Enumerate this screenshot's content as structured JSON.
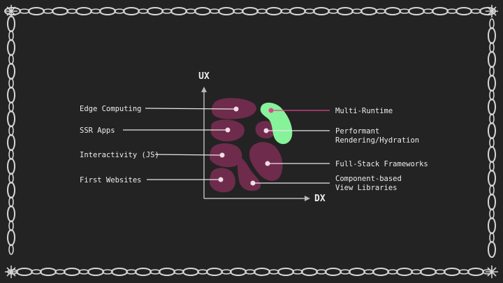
{
  "axes": {
    "y_label": "UX",
    "x_label": "DX"
  },
  "colors": {
    "background": "#232323",
    "blob": "#6e2b4c",
    "highlight_blob": "#86f29a",
    "leader": "#e6e6e6",
    "highlight_leader": "#e0468a",
    "chain": "#d6d6d6"
  },
  "labels_left": [
    {
      "text": "Edge Computing"
    },
    {
      "text": "SSR Apps"
    },
    {
      "text": "Interactivity (JS)"
    },
    {
      "text": "First Websites"
    }
  ],
  "labels_right": [
    {
      "lines": [
        "Multi-Runtime"
      ],
      "highlight": true
    },
    {
      "lines": [
        "Performant",
        "Rendering/Hydration"
      ]
    },
    {
      "lines": [
        "Full-Stack Frameworks"
      ]
    },
    {
      "lines": [
        "Component-based",
        "View Libraries"
      ]
    }
  ]
}
